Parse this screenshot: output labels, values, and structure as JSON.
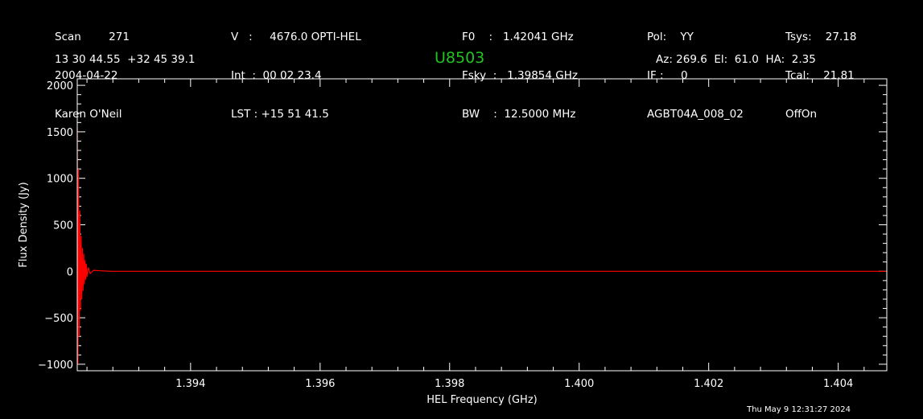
{
  "header": {
    "col1": [
      "Scan        271",
      "2004-04-22",
      "Karen O'Neil"
    ],
    "col2": [
      "V   :     4676.0 OPTI-HEL",
      "Int  :  00 02 23.4",
      "LST : +15 51 41.5"
    ],
    "col3": [
      "F0    :   1.42041 GHz",
      "Fsky  :   1.39854 GHz",
      "BW    :  12.5000 MHz"
    ],
    "col4": [
      "Pol:    YY",
      "IF :     0",
      "AGBT04A_008_02"
    ],
    "col5": [
      "Tsys:    27.18",
      "Tcal:    21.81",
      "OffOn"
    ],
    "coords": "13 30 44.55  +32 45 39.1",
    "source": "U8503",
    "azel": "Az: 269.6  El:  61.0  HA:  2.35"
  },
  "timestamp": "Thu May  9 12:31:27 2024",
  "colors": {
    "background": "#000000",
    "axes": "#ffffff",
    "trace": "#ff0000",
    "source": "#22c322"
  },
  "chart_data": {
    "type": "line",
    "xlabel": "HEL Frequency (GHz)",
    "ylabel": "Flux Density (Jy)",
    "xlim": [
      1.39225,
      1.40475
    ],
    "ylim": [
      -1070,
      2070
    ],
    "xticks": [
      1.394,
      1.396,
      1.398,
      1.4,
      1.402,
      1.404
    ],
    "xtick_labels": [
      "1.394",
      "1.396",
      "1.398",
      "1.400",
      "1.402",
      "1.404"
    ],
    "yticks": [
      -1000,
      -500,
      0,
      500,
      1000,
      1500,
      2000
    ],
    "ytick_labels": [
      "−1000",
      "−500",
      "0",
      "500",
      "1000",
      "1500",
      "2000"
    ],
    "series": [
      {
        "x": [
          1.39225,
          1.39226,
          1.39227,
          1.39228,
          1.39229,
          1.3923,
          1.39231,
          1.39232,
          1.39233,
          1.39234,
          1.39235,
          1.39236,
          1.39237,
          1.39238,
          1.39239,
          1.3924,
          1.39242,
          1.39245,
          1.3925,
          1.39275,
          1.3935,
          1.3975,
          1.4015,
          1.40475
        ],
        "y": [
          1550,
          -1000,
          1100,
          -700,
          650,
          -420,
          380,
          -300,
          250,
          -210,
          190,
          -140,
          120,
          -90,
          80,
          -60,
          40,
          -25,
          10,
          0,
          0,
          0,
          0,
          0
        ]
      }
    ]
  }
}
